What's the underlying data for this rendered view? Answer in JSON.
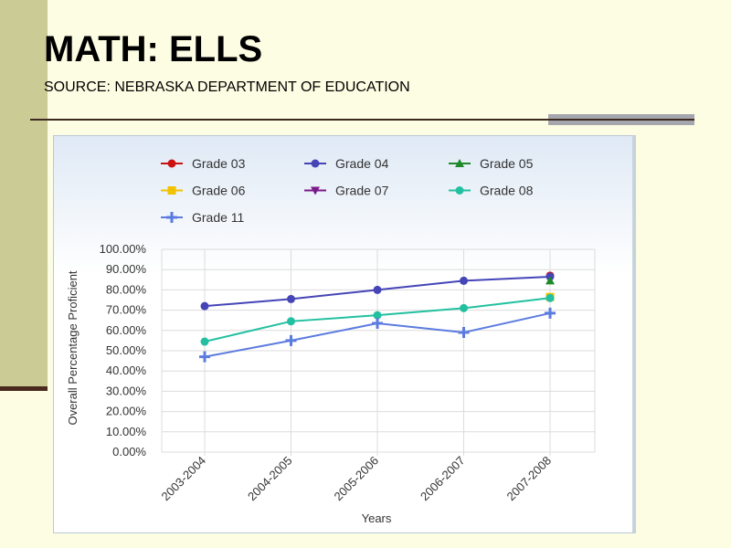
{
  "slide": {
    "title": "MATH: ELLS",
    "subtitle": "SOURCE: NEBRASKA DEPARTMENT OF EDUCATION"
  },
  "chart_data": {
    "type": "line",
    "title": "",
    "xlabel": "Years",
    "ylabel": "Overall Percentage Proficient",
    "categories": [
      "2003-2004",
      "2004-2005",
      "2005-2006",
      "2006-2007",
      "2007-2008"
    ],
    "ylim": [
      0,
      100
    ],
    "yticks": [
      "0.00%",
      "10.00%",
      "20.00%",
      "30.00%",
      "40.00%",
      "50.00%",
      "60.00%",
      "70.00%",
      "80.00%",
      "90.00%",
      "100.00%"
    ],
    "grid": true,
    "legend_position": "top",
    "series": [
      {
        "name": "Grade 03",
        "color": "#cc1111",
        "marker": "circle",
        "values": [
          null,
          null,
          null,
          null,
          87
        ]
      },
      {
        "name": "Grade 04",
        "color": "#4545b8",
        "marker": "circle",
        "values": [
          72,
          75.5,
          80,
          84.5,
          86.5
        ]
      },
      {
        "name": "Grade 05",
        "color": "#1f8a2a",
        "marker": "triangle-up",
        "values": [
          null,
          null,
          null,
          null,
          84.5
        ]
      },
      {
        "name": "Grade 06",
        "color": "#f2c200",
        "marker": "square",
        "values": [
          null,
          null,
          null,
          null,
          76.5
        ]
      },
      {
        "name": "Grade 07",
        "color": "#7a1a8a",
        "marker": "triangle-down",
        "values": [
          null,
          null,
          null,
          null,
          null
        ]
      },
      {
        "name": "Grade 08",
        "color": "#22c0a0",
        "marker": "circle",
        "values": [
          54.5,
          64.5,
          67.5,
          71,
          76
        ]
      },
      {
        "name": "Grade 11",
        "color": "#5b7be0",
        "marker": "plus",
        "values": [
          47,
          55,
          63.5,
          59,
          68.5
        ]
      }
    ]
  }
}
